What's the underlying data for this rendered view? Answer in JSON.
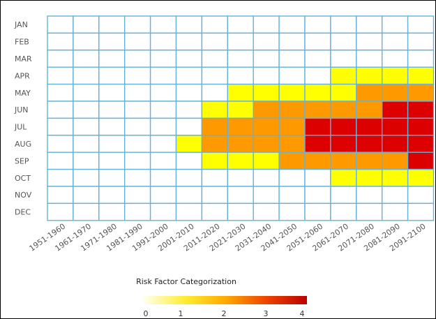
{
  "chart_data": {
    "type": "heatmap",
    "x_categories": [
      "1951-1960",
      "1961-1970",
      "1971-1980",
      "1981-1990",
      "1991-2000",
      "2001-2010",
      "2011-2020",
      "2021-2030",
      "2031-2040",
      "2041-2050",
      "2051-2060",
      "2061-2070",
      "2071-2080",
      "2081-2090",
      "2091-2100"
    ],
    "y_categories": [
      "JAN",
      "FEB",
      "MAR",
      "APR",
      "MAY",
      "JUN",
      "JUL",
      "AUG",
      "SEP",
      "OCT",
      "NOV",
      "DEC"
    ],
    "values": [
      [
        0,
        0,
        0,
        0,
        0,
        0,
        0,
        0,
        0,
        0,
        0,
        0,
        0,
        0,
        0
      ],
      [
        0,
        0,
        0,
        0,
        0,
        0,
        0,
        0,
        0,
        0,
        0,
        0,
        0,
        0,
        0
      ],
      [
        0,
        0,
        0,
        0,
        0,
        0,
        0,
        0,
        0,
        0,
        0,
        0,
        0,
        0,
        0
      ],
      [
        0,
        0,
        0,
        0,
        0,
        0,
        0,
        0,
        0,
        0,
        0,
        1,
        1,
        1,
        1
      ],
      [
        0,
        0,
        0,
        0,
        0,
        0,
        0,
        1,
        1,
        1,
        1,
        1,
        2,
        2,
        2
      ],
      [
        0,
        0,
        0,
        0,
        0,
        0,
        1,
        1,
        2,
        2,
        2,
        2,
        2,
        3,
        3
      ],
      [
        0,
        0,
        0,
        0,
        0,
        0,
        2,
        2,
        2,
        2,
        3,
        3,
        3,
        3,
        3
      ],
      [
        0,
        0,
        0,
        0,
        0,
        1,
        2,
        2,
        2,
        2,
        3,
        3,
        3,
        3,
        3
      ],
      [
        0,
        0,
        0,
        0,
        0,
        0,
        1,
        1,
        1,
        2,
        2,
        2,
        2,
        2,
        3
      ],
      [
        0,
        0,
        0,
        0,
        0,
        0,
        0,
        0,
        0,
        0,
        0,
        1,
        1,
        1,
        1
      ],
      [
        0,
        0,
        0,
        0,
        0,
        0,
        0,
        0,
        0,
        0,
        0,
        0,
        0,
        0,
        0
      ],
      [
        0,
        0,
        0,
        0,
        0,
        0,
        0,
        0,
        0,
        0,
        0,
        0,
        0,
        0,
        0
      ]
    ],
    "category_colors": [
      "#ffffff",
      "#ffff00",
      "#ff9900",
      "#dd0000"
    ],
    "grid_color": "#63b3dc",
    "legend": {
      "title": "Risk Factor Categorization",
      "ticks": [
        "0",
        "1",
        "2",
        "3",
        "4"
      ],
      "gradient": [
        "#ffffee",
        "#ffee33",
        "#ffaa00",
        "#ee4400",
        "#bb0000"
      ],
      "placement": "bottom"
    }
  }
}
